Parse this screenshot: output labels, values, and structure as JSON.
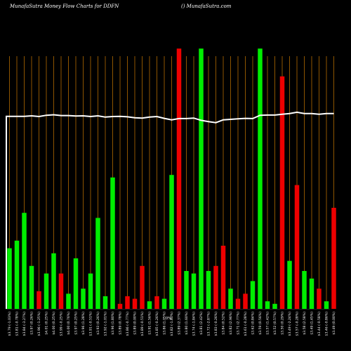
{
  "header": {
    "title": "MunafaSutra  Money Flow  Charts for DDFN",
    "site": "() MunafaSutra.com"
  },
  "colors": {
    "background": "#000000",
    "grid": "#b36b00",
    "up": "#00ee00",
    "down": "#ee0000",
    "line": "#ffffff"
  },
  "chart_data": {
    "type": "bar",
    "axis_mid_label": "0%",
    "ylim": [
      0,
      100
    ],
    "grid": "vertical",
    "categories": [
      "$3.79 (-1.03%)",
      "$3.81 (-0.78%)",
      "$3.84 (-3.27%)",
      "$3.97 (0.26%)",
      "$3.96 (-1.25%)",
      "$4.01 (0.25%)",
      "$4.00 (0.25%)",
      "$3.99 (-0.25%)",
      "$4.00 (0.76%)",
      "$3.97 (0.25%)",
      "$3.96 (1.28%)",
      "$3.91 (-0.51%)",
      "$3.93 (0.26%)",
      "$3.92 (-1.01%)",
      "$3.96 (1.80%)",
      "$3.89 (0.78%)",
      "$3.86 (-0.77%)",
      "$3.89 (0.00%)",
      "$3.89 (-0.51%)",
      "$3.91 (1.56%)",
      "$3.85 (-0.26%)",
      "$3.86 (1.05%)",
      "$3.82 (-1.80%)",
      "$3.89 (2.37%)",
      "$3.80 (1.60%)",
      "$3.74 (-1.84%)",
      "$3.81 (2.42%)",
      "$3.72 (-2.87%)",
      "$3.83 (-0.26%)",
      "$3.84 (0.52%)",
      "$3.82 (2.96%)",
      "$3.71 (2.77%)",
      "$3.61 (-0.28%)",
      "$3.62 (0.84%)",
      "$3.59 (0.56%)",
      "$3.57 (1.42%)",
      "$3.52 (0.57%)",
      "$3.50 (0.29%)",
      "$3.49 (-2.24%)",
      "$3.57 (-0.28%)",
      "$3.58 (2.58%)",
      "$3.49 (1.45%)",
      "$3.44 (-0.58%)",
      "$3.46 (-0.86%)",
      "$3.49 (0.00%)"
    ],
    "directions": [
      "up",
      "up",
      "up",
      "up",
      "down",
      "up",
      "up",
      "down",
      "up",
      "up",
      "up",
      "up",
      "up",
      "up",
      "up",
      "down",
      "down",
      "down",
      "down",
      "up",
      "down",
      "up",
      "up",
      "down",
      "up",
      "up",
      "up",
      "up",
      "down",
      "down",
      "up",
      "down",
      "down",
      "up",
      "up",
      "up",
      "up",
      "down",
      "up",
      "down",
      "up",
      "up",
      "down",
      "up",
      "down"
    ],
    "values": [
      24,
      27,
      38,
      17,
      7,
      14,
      22,
      14,
      6,
      20,
      8,
      14,
      36,
      5,
      52,
      2,
      5,
      4,
      17,
      3,
      5,
      4,
      53,
      103,
      15,
      14,
      103,
      15,
      17,
      25,
      8,
      4,
      6,
      11,
      103,
      3,
      2,
      92,
      19,
      49,
      15,
      12,
      8,
      3,
      40
    ],
    "flow_line": [
      76.2,
      76.2,
      76.2,
      76.4,
      76.1,
      76.6,
      76.8,
      76.5,
      76.5,
      76.3,
      76.4,
      76.1,
      76.4,
      75.9,
      76.1,
      76.2,
      76.0,
      75.6,
      75.5,
      75.9,
      76.1,
      75.4,
      74.8,
      75.3,
      75.3,
      75.5,
      74.6,
      74.1,
      73.7,
      74.8,
      75.0,
      75.2,
      75.4,
      75.3,
      76.6,
      76.7,
      76.7,
      77.0,
      77.3,
      77.8,
      77.3,
      77.3,
      77.0,
      77.3,
      77.3
    ]
  }
}
